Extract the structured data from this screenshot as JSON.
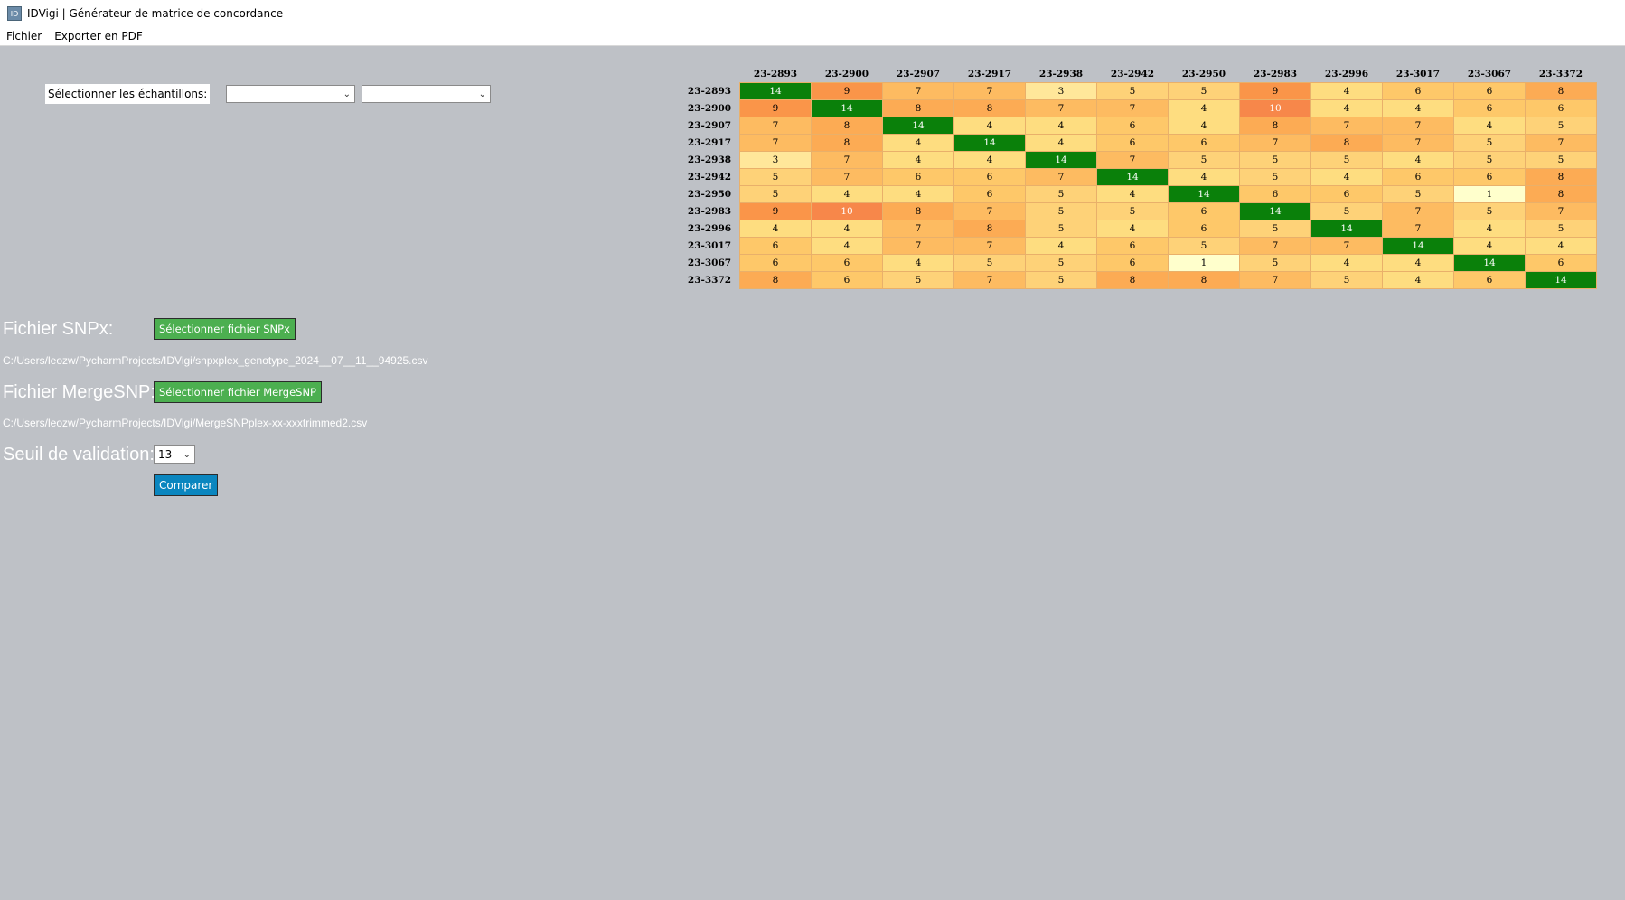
{
  "window": {
    "icon_label": "ID",
    "title": "IDVigi | Générateur de matrice de concordance"
  },
  "menu": {
    "items": [
      "Fichier",
      "Exporter en PDF"
    ]
  },
  "samples": {
    "label": "Sélectionner les échantillons:",
    "select1_value": "",
    "select2_value": ""
  },
  "snpx": {
    "label": "Fichier SNPx:",
    "button_label": "Sélectionner fichier SNPx",
    "path": "C:/Users/leozw/PycharmProjects/IDVigi/snpxplex_genotype_2024__07__11__94925.csv"
  },
  "mergesnp": {
    "label": "Fichier MergeSNP:",
    "button_label": "Sélectionner fichier MergeSNP",
    "path": "C:/Users/leozw/PycharmProjects/IDVigi/MergeSNPplex-xx-xxxtrimmed2.csv"
  },
  "threshold": {
    "label": "Seuil de validation:",
    "value": "13"
  },
  "compare_button_label": "Comparer",
  "matrix": {
    "headers": [
      "23-2893",
      "23-2900",
      "23-2907",
      "23-2917",
      "23-2938",
      "23-2942",
      "23-2950",
      "23-2983",
      "23-2996",
      "23-3017",
      "23-3067",
      "23-3372"
    ],
    "rows": [
      [
        "14",
        "9",
        "7",
        "7",
        "3",
        "5",
        "5",
        "9",
        "4",
        "6",
        "6",
        "8"
      ],
      [
        "9",
        "14",
        "8",
        "8",
        "7",
        "7",
        "4",
        "10",
        "4",
        "4",
        "6",
        "6"
      ],
      [
        "7",
        "8",
        "14",
        "4",
        "4",
        "6",
        "4",
        "8",
        "7",
        "7",
        "4",
        "5"
      ],
      [
        "7",
        "8",
        "4",
        "14",
        "4",
        "6",
        "6",
        "7",
        "8",
        "7",
        "5",
        "7"
      ],
      [
        "3",
        "7",
        "4",
        "4",
        "14",
        "7",
        "5",
        "5",
        "5",
        "4",
        "5",
        "5"
      ],
      [
        "5",
        "7",
        "6",
        "6",
        "7",
        "14",
        "4",
        "5",
        "4",
        "6",
        "6",
        "8"
      ],
      [
        "5",
        "4",
        "4",
        "6",
        "5",
        "4",
        "14",
        "6",
        "6",
        "5",
        "1",
        "8"
      ],
      [
        "9",
        "10",
        "8",
        "7",
        "5",
        "5",
        "6",
        "14",
        "5",
        "7",
        "5",
        "7"
      ],
      [
        "4",
        "4",
        "7",
        "8",
        "5",
        "4",
        "6",
        "5",
        "14",
        "7",
        "4",
        "5"
      ],
      [
        "6",
        "4",
        "7",
        "7",
        "4",
        "6",
        "5",
        "7",
        "7",
        "14",
        "4",
        "4"
      ],
      [
        "6",
        "6",
        "4",
        "5",
        "5",
        "6",
        "1",
        "5",
        "4",
        "4",
        "14",
        "6"
      ],
      [
        "8",
        "6",
        "5",
        "7",
        "5",
        "8",
        "8",
        "7",
        "5",
        "4",
        "6",
        "14"
      ]
    ],
    "colors": {
      "14": "#0a800a",
      "10": "#f7874a",
      "9": "#fa9549",
      "8": "#fcab54",
      "7": "#fdbb61",
      "6": "#fec869",
      "5": "#fed278",
      "4": "#fedd80",
      "3": "#ffe79a",
      "1": "#ffffcc"
    },
    "light_text_values": [
      "14",
      "10"
    ]
  }
}
